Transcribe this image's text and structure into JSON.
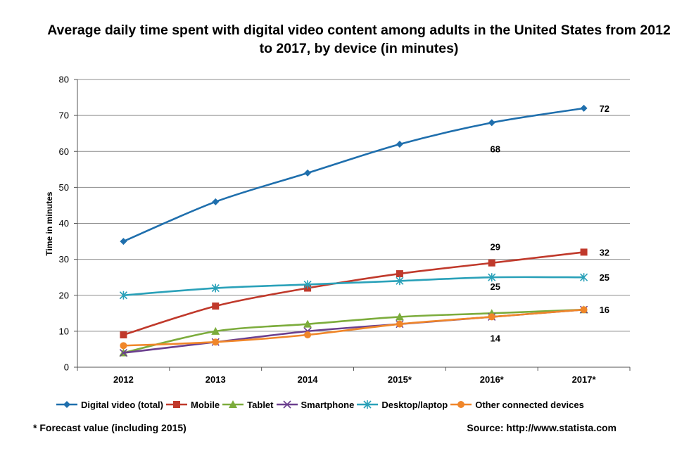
{
  "chart_data": {
    "type": "line",
    "title": "Average daily time spent with digital video content among adults in the United States from 2012 to 2017, by device (in minutes)",
    "ylabel": "Time in minutes",
    "xlabel": "",
    "categories": [
      "2012",
      "2013",
      "2014",
      "2015*",
      "2016*",
      "2017*"
    ],
    "ylim": [
      0,
      80
    ],
    "yticks": [
      0,
      10,
      20,
      30,
      40,
      50,
      60,
      70,
      80
    ],
    "grid": true,
    "legend": "bottom",
    "series": [
      {
        "name": "Digital video (total)",
        "color": "#1f6fad",
        "marker": "diamond",
        "values": [
          35,
          46,
          54,
          62,
          68,
          72
        ]
      },
      {
        "name": "Mobile",
        "color": "#c0392b",
        "marker": "square",
        "values": [
          9,
          17,
          22,
          26,
          29,
          32
        ]
      },
      {
        "name": "Tablet",
        "color": "#7cac3c",
        "marker": "triangle",
        "values": [
          4,
          10,
          12,
          14,
          15,
          16
        ]
      },
      {
        "name": "Smartphone",
        "color": "#6b3f8e",
        "marker": "x",
        "values": [
          4,
          7,
          10,
          12,
          14,
          16
        ]
      },
      {
        "name": "Desktop/laptop",
        "color": "#2aa1b9",
        "marker": "star",
        "values": [
          20,
          22,
          23,
          24,
          25,
          25
        ]
      },
      {
        "name": "Other connected devices",
        "color": "#f0862a",
        "marker": "circle",
        "values": [
          6,
          7,
          9,
          12,
          14,
          16
        ]
      }
    ],
    "annotations": [
      "72",
      "68",
      "29",
      "32",
      "25",
      "25",
      "16",
      "14"
    ]
  },
  "footnote": "* Forecast value (including 2015)",
  "source": "Source: http://www.statista.com"
}
